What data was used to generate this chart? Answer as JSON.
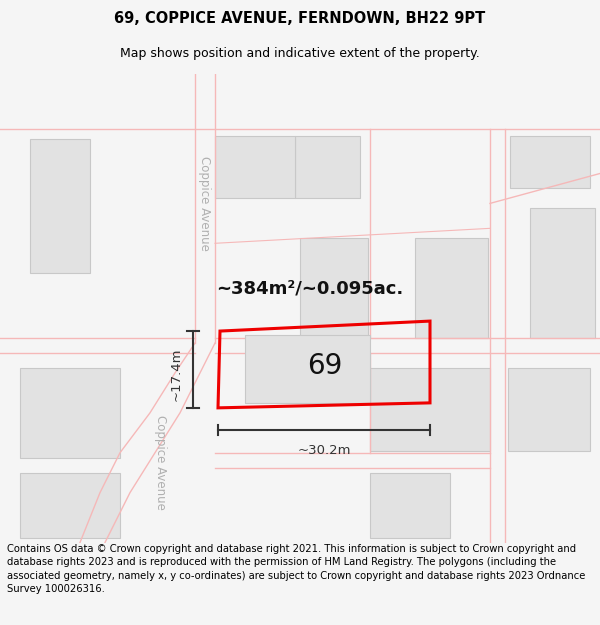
{
  "title_line1": "69, COPPICE AVENUE, FERNDOWN, BH22 9PT",
  "title_line2": "Map shows position and indicative extent of the property.",
  "footer_text": "Contains OS data © Crown copyright and database right 2021. This information is subject to Crown copyright and database rights 2023 and is reproduced with the permission of HM Land Registry. The polygons (including the associated geometry, namely x, y co-ordinates) are subject to Crown copyright and database rights 2023 Ordnance Survey 100026316.",
  "area_text": "~384m²/~0.095ac.",
  "number_text": "69",
  "width_text": "~30.2m",
  "height_text": "~17.4m",
  "road_label_top": "Coppice Avenue",
  "road_label_bot": "Coppice Avenue",
  "bg_color": "#f5f5f5",
  "map_bg": "#ffffff",
  "road_line_color": "#f5b8b8",
  "plot_fill": "#e2e2e2",
  "plot_stroke": "#c8c8c8",
  "highlight_stroke": "#ee0000",
  "dim_color": "#333333",
  "title_fontsize": 10.5,
  "subtitle_fontsize": 9,
  "footer_fontsize": 7.2,
  "area_fontsize": 13,
  "num_fontsize": 20,
  "dim_fontsize": 9.5,
  "road_label_fontsize": 8.5,
  "road_label_color": "#b0b0b0"
}
